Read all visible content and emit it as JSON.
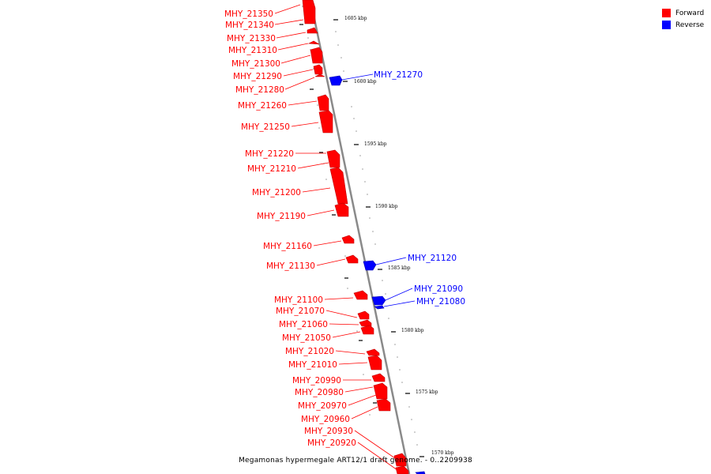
{
  "legend": {
    "items": [
      {
        "label": "Forward",
        "color": "#ff0000"
      },
      {
        "label": "Reverse",
        "color": "#0000ff"
      }
    ]
  },
  "caption": "Megamonas hypermegale ART12/1 draft genome. - 0..2209938",
  "colors": {
    "forward": "#ff0000",
    "reverse": "#0000ff",
    "backbone": "#8a8a8a"
  },
  "chart_data": {
    "type": "genome-map",
    "kbp_ticks": [
      "1605 kbp",
      "1600 kbp",
      "1595 kbp",
      "1590 kbp",
      "1585 kbp",
      "1580 kbp",
      "1575 kbp",
      "1570 kbp"
    ],
    "genes_forward": [
      "MHY_21350",
      "MHY_21340",
      "MHY_21330",
      "MHY_21310",
      "MHY_21300",
      "MHY_21290",
      "MHY_21280",
      "MHY_21260",
      "MHY_21250",
      "MHY_21220",
      "MHY_21210",
      "MHY_21200",
      "MHY_21190",
      "MHY_21160",
      "MHY_21130",
      "MHY_21100",
      "MHY_21070",
      "MHY_21060",
      "MHY_21050",
      "MHY_21020",
      "MHY_21010",
      "MHY_20990",
      "MHY_20980",
      "MHY_20970",
      "MHY_20960",
      "MHY_20930",
      "MHY_20920"
    ],
    "genes_reverse": [
      "MHY_21270",
      "MHY_21120",
      "MHY_21090",
      "MHY_21080"
    ]
  }
}
